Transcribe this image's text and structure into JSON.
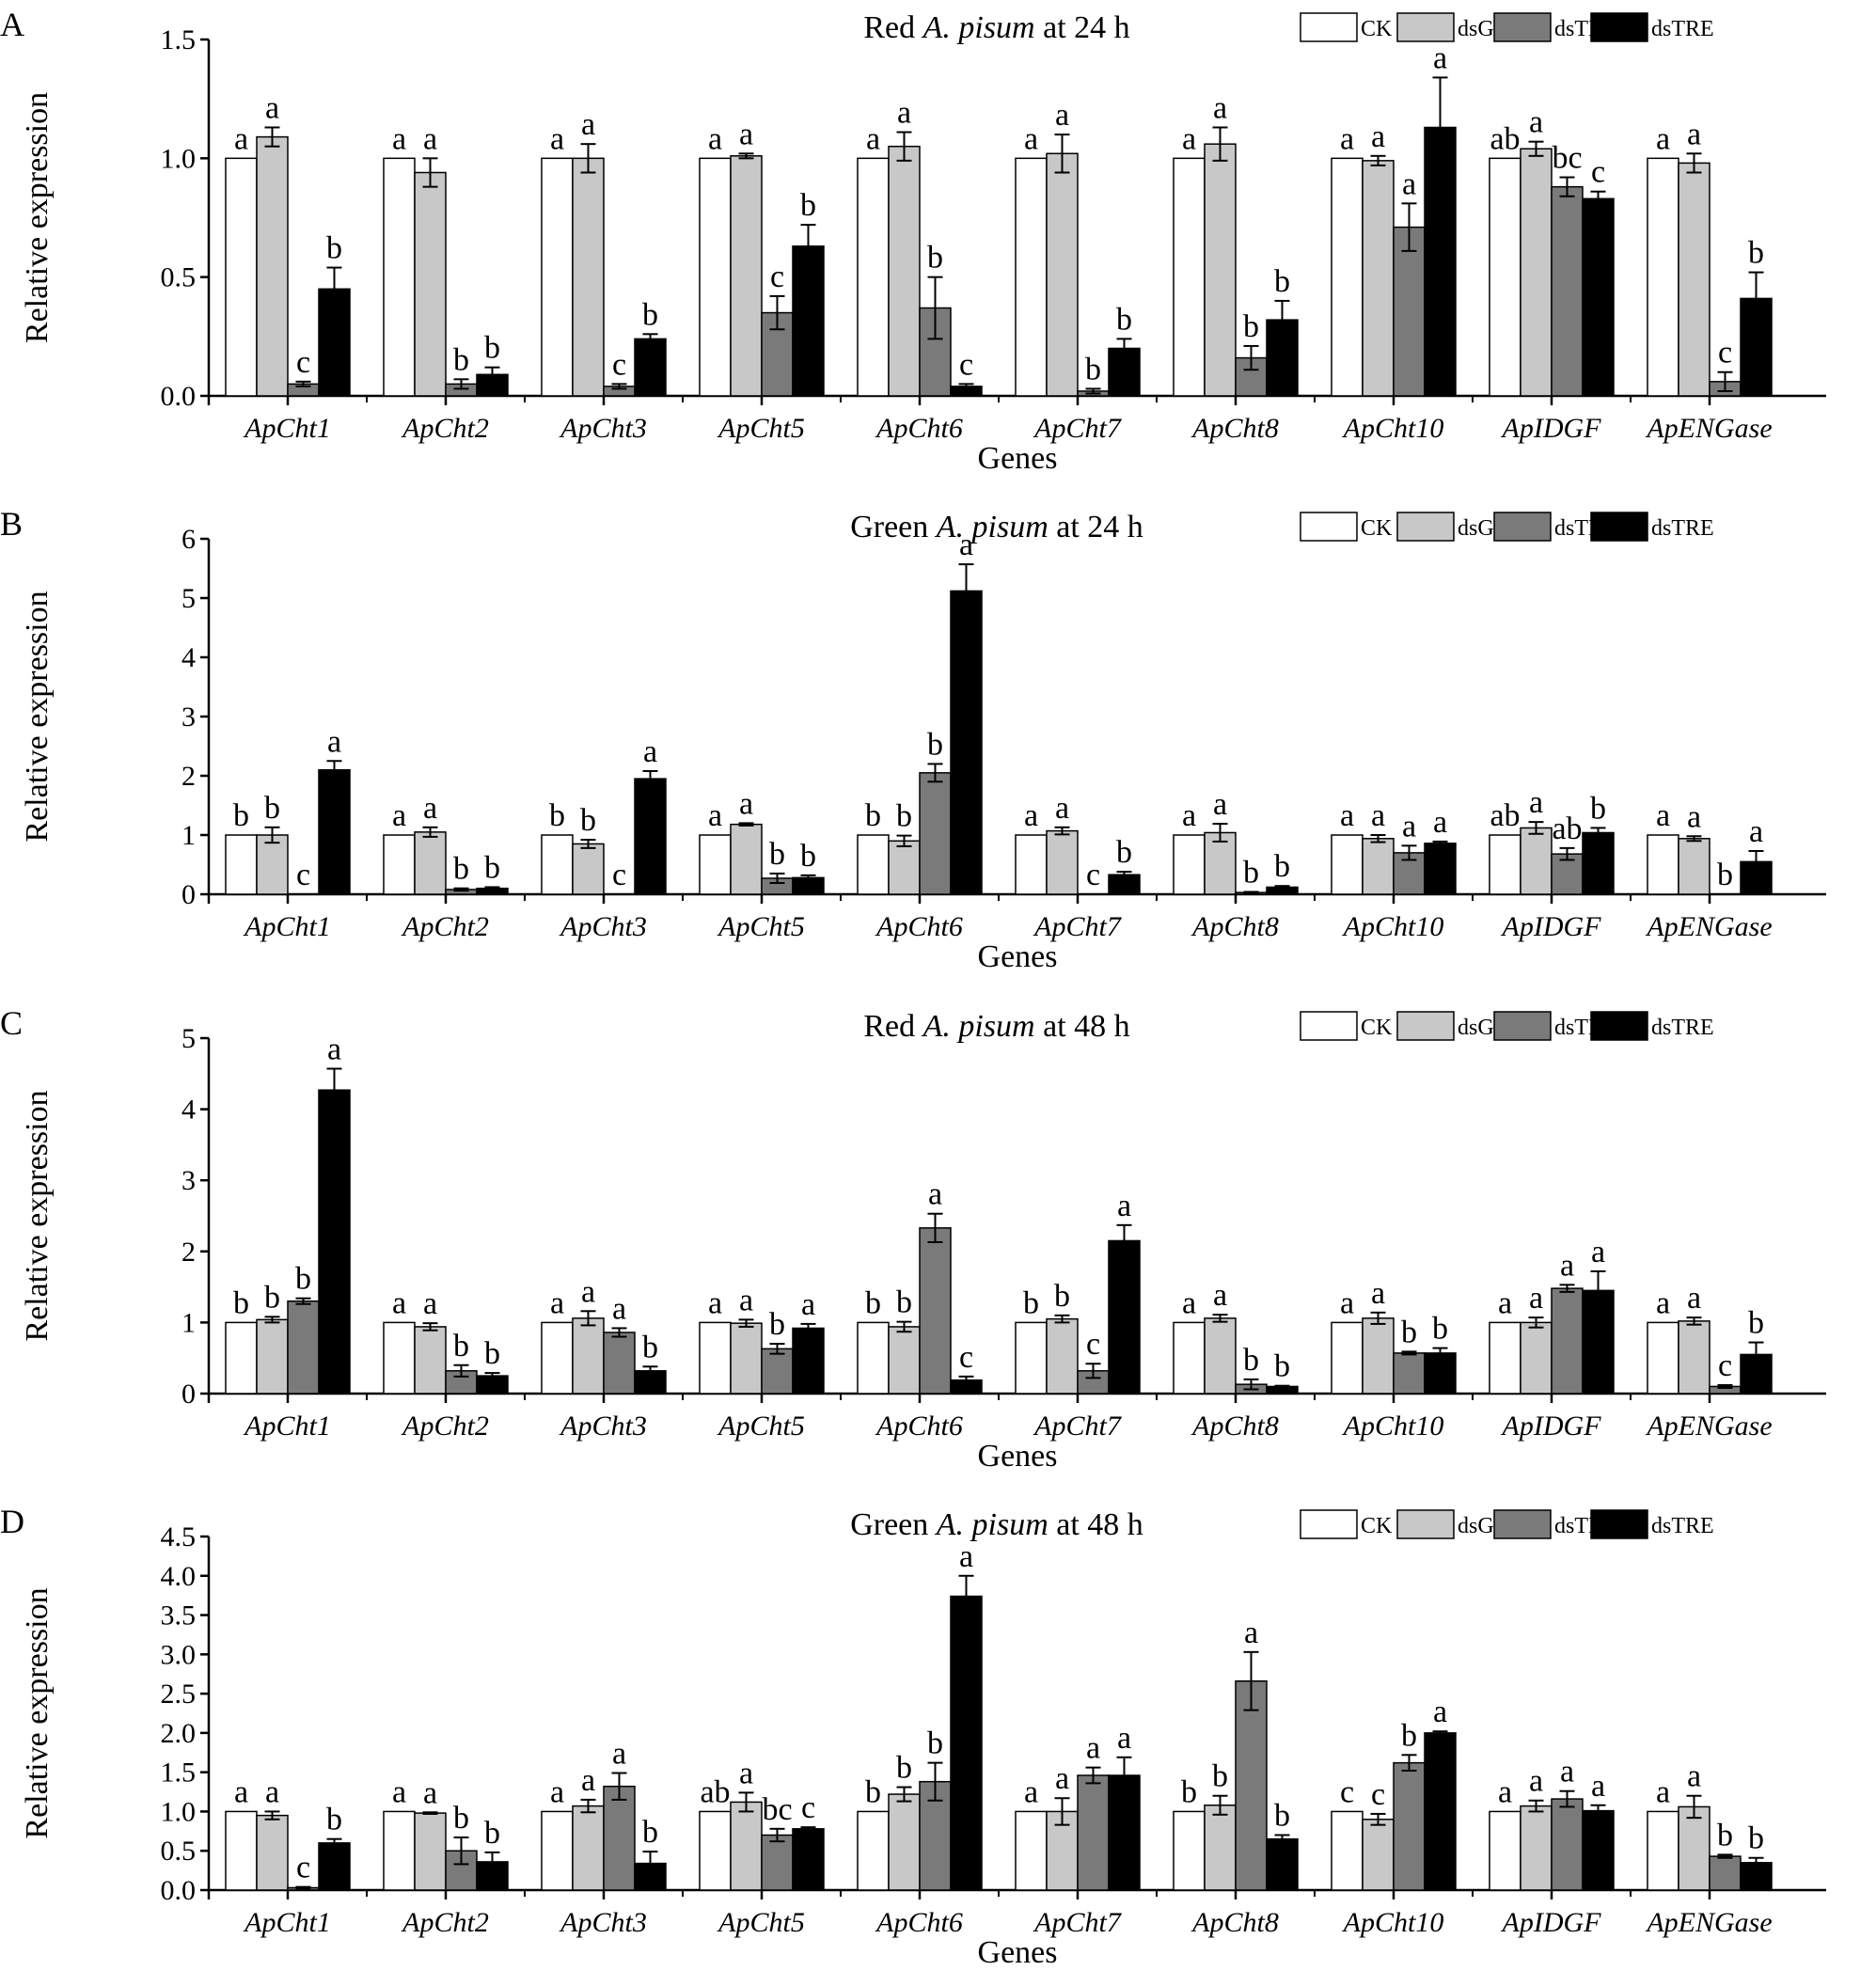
{
  "chart_data": [
    {
      "type": "bar",
      "panel": "A",
      "title": "Red A. pisum at 24 h",
      "title_parts": [
        "Red ",
        "A. pisum",
        " at 24 h"
      ],
      "xlabel": "Genes",
      "ylabel": "Relative expression",
      "ylim": [
        0,
        1.5
      ],
      "yticks": [
        0,
        0.5,
        1.0,
        1.5
      ],
      "ytick_labels": [
        "0.0",
        "0.5",
        "1.0",
        "1.5"
      ],
      "categories": [
        "ApCht1",
        "ApCht2",
        "ApCht3",
        "ApCht5",
        "ApCht6",
        "ApCht7",
        "ApCht8",
        "ApCht10",
        "ApIDGF",
        "ApENGase"
      ],
      "series": [
        {
          "name": "CK",
          "values": [
            1.0,
            1.0,
            1.0,
            1.0,
            1.0,
            1.0,
            1.0,
            1.0,
            1.0,
            1.0
          ],
          "errors": [
            0,
            0,
            0,
            0,
            0,
            0,
            0,
            0,
            0,
            0
          ],
          "letters": [
            "a",
            "a",
            "a",
            "a",
            "a",
            "a",
            "a",
            "a",
            "ab",
            "a"
          ]
        },
        {
          "name": "dsGFP",
          "values": [
            1.09,
            0.94,
            1.0,
            1.01,
            1.05,
            1.02,
            1.06,
            0.99,
            1.04,
            0.98
          ],
          "errors": [
            0.04,
            0.06,
            0.06,
            0.01,
            0.06,
            0.08,
            0.07,
            0.02,
            0.03,
            0.04
          ],
          "letters": [
            "a",
            "a",
            "a",
            "a",
            "a",
            "a",
            "a",
            "a",
            "a",
            "a"
          ]
        },
        {
          "name": "dsTPS",
          "values": [
            0.05,
            0.05,
            0.04,
            0.35,
            0.37,
            0.02,
            0.16,
            0.71,
            0.88,
            0.06
          ],
          "errors": [
            0.01,
            0.02,
            0.01,
            0.07,
            0.13,
            0.01,
            0.05,
            0.1,
            0.04,
            0.04
          ],
          "letters": [
            "c",
            "b",
            "c",
            "c",
            "b",
            "b",
            "b",
            "a",
            "bc",
            "c"
          ]
        },
        {
          "name": "dsTRE",
          "values": [
            0.45,
            0.09,
            0.24,
            0.63,
            0.04,
            0.2,
            0.32,
            1.13,
            0.83,
            0.41
          ],
          "errors": [
            0.09,
            0.03,
            0.02,
            0.09,
            0.01,
            0.04,
            0.08,
            0.21,
            0.03,
            0.11
          ],
          "letters": [
            "b",
            "b",
            "b",
            "b",
            "c",
            "b",
            "b",
            "a",
            "c",
            "b"
          ]
        }
      ],
      "legend": [
        "CK",
        "dsGFP",
        "dsTPS",
        "dsTRE"
      ],
      "legend_position": "top-right"
    },
    {
      "type": "bar",
      "panel": "B",
      "title": "Green A. pisum at 24 h",
      "title_parts": [
        "Green ",
        "A. pisum",
        " at 24 h"
      ],
      "xlabel": "Genes",
      "ylabel": "Relative expression",
      "ylim": [
        0,
        6
      ],
      "yticks": [
        0,
        1,
        2,
        3,
        4,
        5,
        6
      ],
      "ytick_labels": [
        "0",
        "1",
        "2",
        "3",
        "4",
        "5",
        "6"
      ],
      "categories": [
        "ApCht1",
        "ApCht2",
        "ApCht3",
        "ApCht5",
        "ApCht6",
        "ApCht7",
        "ApCht8",
        "ApCht10",
        "ApIDGF",
        "ApENGase"
      ],
      "series": [
        {
          "name": "CK",
          "values": [
            1.0,
            1.0,
            1.0,
            1.0,
            1.0,
            1.0,
            1.0,
            1.0,
            1.0,
            1.0
          ],
          "errors": [
            0,
            0,
            0,
            0,
            0,
            0,
            0,
            0,
            0,
            0
          ],
          "letters": [
            "b",
            "a",
            "b",
            "a",
            "b",
            "a",
            "a",
            "a",
            "ab",
            "a"
          ]
        },
        {
          "name": "dsGFP",
          "values": [
            1.0,
            1.05,
            0.85,
            1.18,
            0.9,
            1.07,
            1.04,
            0.94,
            1.12,
            0.94
          ],
          "errors": [
            0.13,
            0.08,
            0.07,
            0.02,
            0.09,
            0.06,
            0.15,
            0.06,
            0.1,
            0.04
          ],
          "letters": [
            "b",
            "a",
            "b",
            "a",
            "b",
            "a",
            "a",
            "a",
            "a",
            "a"
          ]
        },
        {
          "name": "dsTPS",
          "values": [
            0.0,
            0.08,
            0.0,
            0.27,
            2.05,
            0.0,
            0.03,
            0.7,
            0.68,
            0.0
          ],
          "errors": [
            0,
            0.02,
            0,
            0.08,
            0.15,
            0,
            0.01,
            0.12,
            0.1,
            0
          ],
          "letters": [
            "c",
            "b",
            "c",
            "b",
            "b",
            "c",
            "b",
            "a",
            "ab",
            "b"
          ]
        },
        {
          "name": "dsTRE",
          "values": [
            2.1,
            0.1,
            1.95,
            0.28,
            5.12,
            0.33,
            0.12,
            0.86,
            1.04,
            0.55
          ],
          "errors": [
            0.15,
            0.02,
            0.13,
            0.04,
            0.45,
            0.05,
            0.02,
            0.03,
            0.08,
            0.18
          ],
          "letters": [
            "a",
            "b",
            "a",
            "b",
            "a",
            "b",
            "b",
            "a",
            "b",
            "a"
          ]
        }
      ],
      "legend": [
        "CK",
        "dsGFP",
        "dsTPS",
        "dsTRE"
      ],
      "legend_position": "top-right"
    },
    {
      "type": "bar",
      "panel": "C",
      "title": "Red A. pisum at 48 h",
      "title_parts": [
        "Red ",
        "A. pisum",
        " at 48 h"
      ],
      "xlabel": "Genes",
      "ylabel": "Relative expression",
      "ylim": [
        0,
        5
      ],
      "yticks": [
        0,
        1,
        2,
        3,
        4,
        5
      ],
      "ytick_labels": [
        "0",
        "1",
        "2",
        "3",
        "4",
        "5"
      ],
      "categories": [
        "ApCht1",
        "ApCht2",
        "ApCht3",
        "ApCht5",
        "ApCht6",
        "ApCht7",
        "ApCht8",
        "ApCht10",
        "ApIDGF",
        "ApENGase"
      ],
      "series": [
        {
          "name": "CK",
          "values": [
            1.0,
            1.0,
            1.0,
            1.0,
            1.0,
            1.0,
            1.0,
            1.0,
            1.0,
            1.0
          ],
          "errors": [
            0,
            0,
            0,
            0,
            0,
            0,
            0,
            0,
            0,
            0
          ],
          "letters": [
            "b",
            "a",
            "a",
            "a",
            "b",
            "b",
            "a",
            "a",
            "a",
            "a"
          ]
        },
        {
          "name": "dsGFP",
          "values": [
            1.04,
            0.94,
            1.06,
            0.99,
            0.94,
            1.05,
            1.06,
            1.06,
            1.0,
            1.02
          ],
          "errors": [
            0.04,
            0.05,
            0.1,
            0.05,
            0.07,
            0.05,
            0.05,
            0.08,
            0.07,
            0.05
          ],
          "letters": [
            "b",
            "a",
            "a",
            "a",
            "b",
            "b",
            "a",
            "a",
            "a",
            "a"
          ]
        },
        {
          "name": "dsTPS",
          "values": [
            1.3,
            0.32,
            0.86,
            0.63,
            2.33,
            0.32,
            0.13,
            0.57,
            1.48,
            0.1
          ],
          "errors": [
            0.04,
            0.08,
            0.06,
            0.07,
            0.2,
            0.1,
            0.07,
            0.02,
            0.05,
            0.02
          ],
          "letters": [
            "b",
            "b",
            "a",
            "b",
            "a",
            "c",
            "b",
            "b",
            "a",
            "c"
          ]
        },
        {
          "name": "dsTRE",
          "values": [
            4.27,
            0.25,
            0.32,
            0.92,
            0.19,
            2.15,
            0.1,
            0.57,
            1.45,
            0.55
          ],
          "errors": [
            0.3,
            0.04,
            0.06,
            0.06,
            0.05,
            0.22,
            0.01,
            0.07,
            0.27,
            0.17
          ],
          "letters": [
            "a",
            "b",
            "b",
            "a",
            "c",
            "a",
            "b",
            "b",
            "a",
            "b"
          ]
        }
      ],
      "legend": [
        "CK",
        "dsGFP",
        "dsTPS",
        "dsTRE"
      ],
      "legend_position": "top-right"
    },
    {
      "type": "bar",
      "panel": "D",
      "title": "Green A. pisum at 48 h",
      "title_parts": [
        "Green ",
        "A. pisum",
        " at 48 h"
      ],
      "xlabel": "Genes",
      "ylabel": "Relative expression",
      "ylim": [
        0,
        4.5
      ],
      "yticks": [
        0,
        0.5,
        1.0,
        1.5,
        2.0,
        2.5,
        3.0,
        3.5,
        4.0,
        4.5
      ],
      "ytick_labels": [
        "0.0",
        "0.5",
        "1.0",
        "1.5",
        "2.0",
        "2.5",
        "3.0",
        "3.5",
        "4.0",
        "4.5"
      ],
      "categories": [
        "ApCht1",
        "ApCht2",
        "ApCht3",
        "ApCht5",
        "ApCht6",
        "ApCht7",
        "ApCht8",
        "ApCht10",
        "ApIDGF",
        "ApENGase"
      ],
      "series": [
        {
          "name": "CK",
          "values": [
            1.0,
            1.0,
            1.0,
            1.0,
            1.0,
            1.0,
            1.0,
            1.0,
            1.0,
            1.0
          ],
          "errors": [
            0,
            0,
            0,
            0,
            0,
            0,
            0,
            0,
            0,
            0
          ],
          "letters": [
            "a",
            "a",
            "a",
            "ab",
            "b",
            "a",
            "b",
            "c",
            "a",
            "a"
          ]
        },
        {
          "name": "dsGFP",
          "values": [
            0.95,
            0.98,
            1.07,
            1.12,
            1.22,
            1.0,
            1.08,
            0.9,
            1.07,
            1.06
          ],
          "errors": [
            0.05,
            0.01,
            0.08,
            0.12,
            0.09,
            0.17,
            0.12,
            0.07,
            0.07,
            0.14
          ],
          "letters": [
            "a",
            "a",
            "a",
            "a",
            "b",
            "a",
            "b",
            "c",
            "a",
            "a"
          ]
        },
        {
          "name": "dsTPS",
          "values": [
            0.03,
            0.5,
            1.32,
            0.7,
            1.38,
            1.46,
            2.66,
            1.62,
            1.16,
            0.43
          ],
          "errors": [
            0.01,
            0.17,
            0.17,
            0.08,
            0.24,
            0.1,
            0.37,
            0.1,
            0.1,
            0.02
          ],
          "letters": [
            "c",
            "b",
            "a",
            "bc",
            "b",
            "a",
            "a",
            "b",
            "a",
            "b"
          ]
        },
        {
          "name": "dsTRE",
          "values": [
            0.6,
            0.36,
            0.34,
            0.78,
            3.74,
            1.46,
            0.65,
            2.0,
            1.01,
            0.35
          ],
          "errors": [
            0.05,
            0.12,
            0.15,
            0.02,
            0.26,
            0.23,
            0.05,
            0.02,
            0.07,
            0.06
          ],
          "letters": [
            "b",
            "b",
            "b",
            "c",
            "a",
            "a",
            "b",
            "a",
            "a",
            "b"
          ]
        }
      ],
      "legend": [
        "CK",
        "dsGFP",
        "dsTPS",
        "dsTRE"
      ],
      "legend_position": "top-right"
    }
  ],
  "series_colors": {
    "CK": "#ffffff",
    "dsGFP": "#c8c8c8",
    "dsTPS": "#7a7a7a",
    "dsTRE": "#000000"
  }
}
